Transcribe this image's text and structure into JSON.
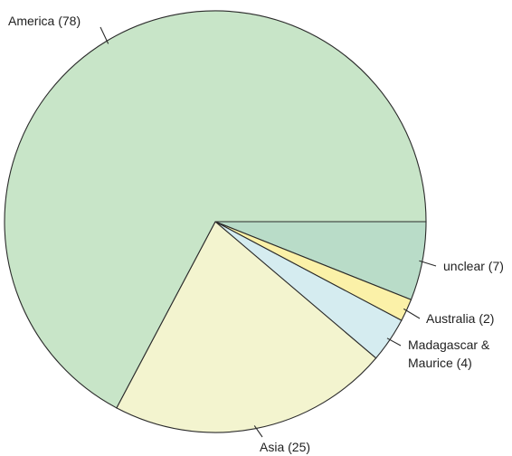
{
  "chart_data": {
    "type": "pie",
    "title": "",
    "legend": "none",
    "slices": [
      {
        "label": "unclear (7)",
        "value": 7,
        "color": "#b9dcc8"
      },
      {
        "label": "Australia (2)",
        "value": 2,
        "color": "#fbf1a8"
      },
      {
        "label": "Madagascar & Maurice (4)",
        "label_lines": [
          "Madagascar &",
          "Maurice (4)"
        ],
        "value": 4,
        "color": "#d5ecf0"
      },
      {
        "label": "Asia (25)",
        "value": 25,
        "color": "#f3f4cf"
      },
      {
        "label": "America (78)",
        "value": 78,
        "color": "#c8e5c8"
      }
    ]
  }
}
